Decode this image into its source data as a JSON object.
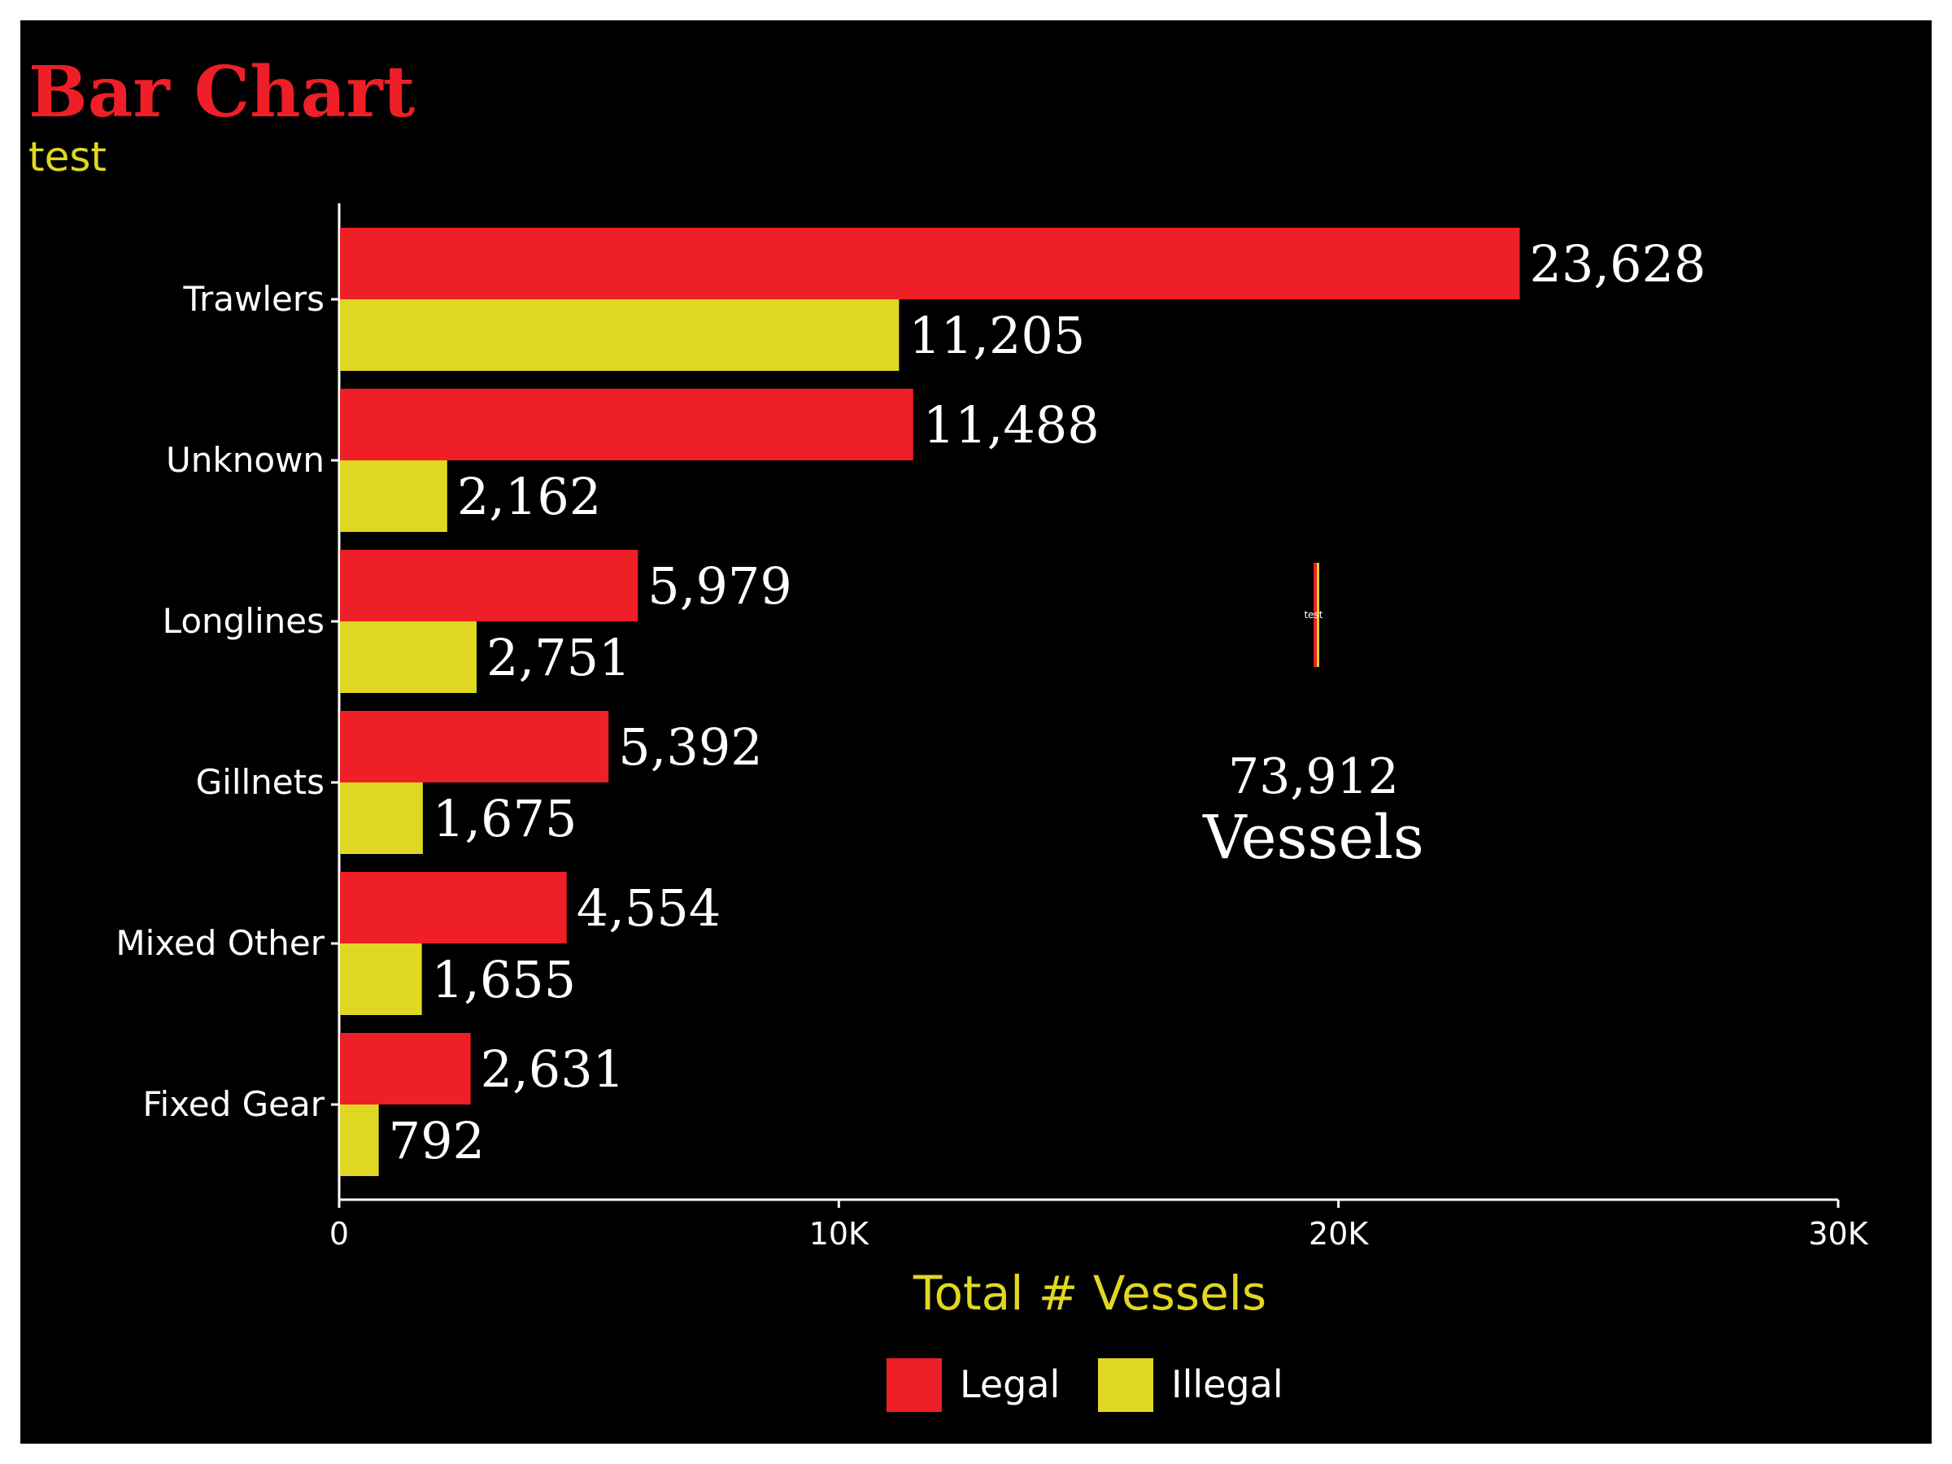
{
  "colors": {
    "background": "#000000",
    "frame": "#ffffff",
    "title": "#ee1f26",
    "subtitle": "#e0d722",
    "axis_title": "#e0d722",
    "text": "#ffffff",
    "legal": "#ee1f26",
    "illegal": "#e0d722"
  },
  "chart_data": {
    "type": "bar",
    "orientation": "horizontal",
    "title": "Bar Chart",
    "subtitle": "test",
    "xlabel": "Total # Vessels",
    "ylabel": "",
    "xlim": [
      0,
      30000
    ],
    "x_ticks": [
      {
        "value": 0,
        "label": "0"
      },
      {
        "value": 10000,
        "label": "10K"
      },
      {
        "value": 20000,
        "label": "20K"
      },
      {
        "value": 30000,
        "label": "30K"
      }
    ],
    "categories": [
      "Trawlers",
      "Unknown",
      "Longlines",
      "Gillnets",
      "Mixed Other",
      "Fixed Gear"
    ],
    "series": [
      {
        "name": "Legal",
        "color": "#ee1f26",
        "values": [
          23628,
          11488,
          5979,
          5392,
          4554,
          2631
        ],
        "labels": [
          "23,628",
          "11,488",
          "5,979",
          "5,392",
          "4,554",
          "2,631"
        ]
      },
      {
        "name": "Illegal",
        "color": "#e0d722",
        "values": [
          11205,
          2162,
          2751,
          1675,
          1655,
          792
        ],
        "labels": [
          "11,205",
          "2,162",
          "2,751",
          "1,675",
          "1,655",
          "792"
        ]
      }
    ],
    "grid": false,
    "legend_position": "bottom",
    "annotation": {
      "total": "73,912",
      "unit": "Vessels",
      "mini_label": "test"
    }
  }
}
